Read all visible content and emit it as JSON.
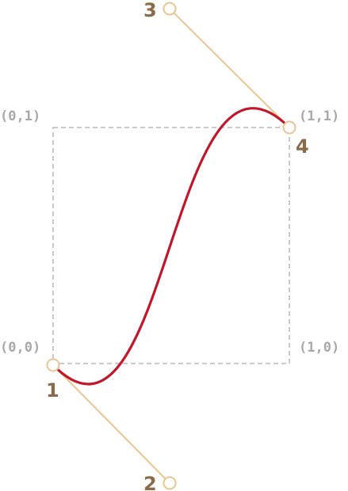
{
  "corner_labels": {
    "top_left": "(0,1)",
    "top_right": "(1,1)",
    "bottom_left": "(0,0)",
    "bottom_right": "(1,0)"
  },
  "point_labels": {
    "p1": "1",
    "p2": "2",
    "p3": "3",
    "p4": "4"
  },
  "colors": {
    "curve": "#c0182a",
    "handle": "#e9c590",
    "frame": "#b8b8b8",
    "coord_text": "#a8a8a8",
    "point_text": "#8a6a47"
  }
}
